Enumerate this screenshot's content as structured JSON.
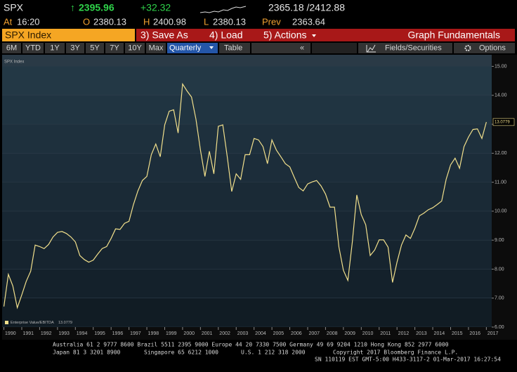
{
  "header": {
    "ticker": "SPX",
    "arrow": "↑",
    "last": "2395.96",
    "change": "+32.32",
    "range": "2365.18 /2412.88",
    "time_label": "At",
    "time": "16:20",
    "open_label": "O",
    "open": "2380.13",
    "high_label": "H",
    "high": "2400.98",
    "low_label": "L",
    "low": "2380.13",
    "prev_label": "Prev",
    "prev": "2363.64"
  },
  "toolbar": {
    "security": "SPX Index",
    "actions": [
      "3) Save As",
      "4) Load",
      "5) Actions"
    ],
    "screen_title": "Graph Fundamentals",
    "periods": [
      "6M",
      "YTD",
      "1Y",
      "3Y",
      "5Y",
      "7Y",
      "10Y",
      "Max"
    ],
    "frequency": "Quarterly",
    "table": "Table",
    "collapse": "«",
    "fields": "Fields/Securities",
    "options": "Options"
  },
  "chart_data": {
    "type": "line",
    "y_label": "SPX Index",
    "grid": true,
    "xlim": [
      1989.9,
      2017.3
    ],
    "ylim": [
      6,
      15.4
    ],
    "xticks": [
      1990,
      1991,
      1992,
      1993,
      1994,
      1995,
      1996,
      1997,
      1998,
      1999,
      2000,
      2001,
      2002,
      2003,
      2004,
      2005,
      2006,
      2007,
      2008,
      2009,
      2010,
      2011,
      2012,
      2013,
      2014,
      2015,
      2016,
      2017
    ],
    "yticks": [
      {
        "value": 6,
        "label": "6.00"
      },
      {
        "value": 7,
        "label": "7.00"
      },
      {
        "value": 8,
        "label": "8.00"
      },
      {
        "value": 9,
        "label": "9.00"
      },
      {
        "value": 10,
        "label": "10.00"
      },
      {
        "value": 11,
        "label": "11.00"
      },
      {
        "value": 12,
        "label": "12.00"
      },
      {
        "value": 13,
        "label": "13.00"
      },
      {
        "value": 14,
        "label": "14.00"
      },
      {
        "value": 15,
        "label": "15.00"
      }
    ],
    "x": [
      1990,
      1990.25,
      1990.5,
      1990.75,
      1991,
      1991.25,
      1991.5,
      1991.75,
      1992,
      1992.25,
      1992.5,
      1992.75,
      1993,
      1993.25,
      1993.5,
      1993.75,
      1994,
      1994.25,
      1994.5,
      1994.75,
      1995,
      1995.25,
      1995.5,
      1995.75,
      1996,
      1996.25,
      1996.5,
      1996.75,
      1997,
      1997.25,
      1997.5,
      1997.75,
      1998,
      1998.25,
      1998.5,
      1998.75,
      1999,
      1999.25,
      1999.5,
      1999.75,
      2000,
      2000.25,
      2000.5,
      2000.75,
      2001,
      2001.25,
      2001.5,
      2001.75,
      2002,
      2002.25,
      2002.5,
      2002.75,
      2003,
      2003.25,
      2003.5,
      2003.75,
      2004,
      2004.25,
      2004.5,
      2004.75,
      2005,
      2005.25,
      2005.5,
      2005.75,
      2006,
      2006.25,
      2006.5,
      2006.75,
      2007,
      2007.25,
      2007.5,
      2007.75,
      2008,
      2008.25,
      2008.5,
      2008.75,
      2009,
      2009.25,
      2009.5,
      2009.75,
      2010,
      2010.25,
      2010.5,
      2010.75,
      2011,
      2011.25,
      2011.5,
      2011.75,
      2012,
      2012.25,
      2012.5,
      2012.75,
      2013,
      2013.25,
      2013.5,
      2013.75,
      2014,
      2014.25,
      2014.5,
      2014.75,
      2015,
      2015.25,
      2015.5,
      2015.75,
      2016,
      2016.25,
      2016.5,
      2016.75,
      2017
    ],
    "series": [
      {
        "name": "Enterprise Value/EBITDA",
        "color": "#f2e08c",
        "value_label": "13.0779",
        "values": [
          6.71,
          7.82,
          7.42,
          6.67,
          7.11,
          7.58,
          7.93,
          8.83,
          8.78,
          8.71,
          8.85,
          9.11,
          9.27,
          9.3,
          9.23,
          9.11,
          8.94,
          8.47,
          8.33,
          8.24,
          8.31,
          8.52,
          8.71,
          8.78,
          9.06,
          9.39,
          9.37,
          9.58,
          9.65,
          10.23,
          10.7,
          11.06,
          11.2,
          11.95,
          12.32,
          11.88,
          12.98,
          13.45,
          13.5,
          12.7,
          14.39,
          14.15,
          13.94,
          13.17,
          12.11,
          11.2,
          12.07,
          11.29,
          12.93,
          12.98,
          11.88,
          10.68,
          11.29,
          11.1,
          11.95,
          11.95,
          12.51,
          12.46,
          12.23,
          11.64,
          12.46,
          12.11,
          11.88,
          11.64,
          11.53,
          11.17,
          10.82,
          10.7,
          10.94,
          11.01,
          11.06,
          10.87,
          10.59,
          10.14,
          10.14,
          8.76,
          7.96,
          7.61,
          8.94,
          10.56,
          9.88,
          9.53,
          8.47,
          8.66,
          9.01,
          9.01,
          8.76,
          7.54,
          8.24,
          8.83,
          9.18,
          9.06,
          9.41,
          9.84,
          9.93,
          10.05,
          10.12,
          10.23,
          10.35,
          11.1,
          11.6,
          11.83,
          11.48,
          12.23,
          12.56,
          12.82,
          12.84,
          12.51,
          13.0779
        ]
      }
    ]
  },
  "footer": {
    "line1": "Australia 61 2 9777 8600 Brazil 5511 2395 9000 Europe 44 20 7330 7500 Germany 49 69 9204 1210 Hong Kong 852 2977 6000",
    "line2a": "Japan 81 3 3201 8900",
    "line2b": "Singapore 65 6212 1000",
    "line2c": "U.S. 1 212 318 2000",
    "line2d": "Copyright 2017 Bloomberg Finance L.P.",
    "line3": "SN 110119 EST  GMT-5:00 H433-3117-2 01-Mar-2017 16:27:54"
  }
}
